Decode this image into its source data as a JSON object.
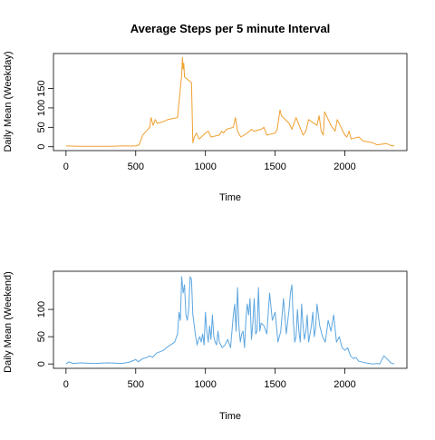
{
  "chart_data": [
    {
      "type": "line",
      "title": "Average Steps per 5 minute Interval",
      "xlabel": "Time",
      "ylabel": "Daily Mean (Weekday)",
      "xlim": [
        -90,
        2445
      ],
      "ylim": [
        -10,
        240
      ],
      "x_ticks": [
        0,
        500,
        1000,
        1500,
        2000
      ],
      "y_ticks": [
        0,
        50,
        100,
        150
      ],
      "color": "#f0a030",
      "series": [
        {
          "x": [
            0,
            100,
            200,
            300,
            400,
            500,
            525,
            550,
            600,
            610,
            625,
            640,
            655,
            700,
            730,
            800,
            815,
            830,
            835,
            840,
            845,
            850,
            900,
            910,
            920,
            935,
            955,
            1000,
            1020,
            1040,
            1100,
            1115,
            1130,
            1150,
            1200,
            1215,
            1230,
            1245,
            1255,
            1300,
            1315,
            1330,
            1345,
            1400,
            1420,
            1440,
            1500,
            1515,
            1535,
            1545,
            1600,
            1620,
            1630,
            1650,
            1700,
            1720,
            1740,
            1800,
            1815,
            1830,
            1845,
            1850,
            1855,
            1900,
            1930,
            1945,
            2000,
            2015,
            2030,
            2045,
            2100,
            2130,
            2200,
            2230,
            2300,
            2330,
            2355
          ],
          "y": [
            2,
            1,
            1,
            1,
            2,
            2,
            5,
            30,
            50,
            75,
            55,
            70,
            60,
            65,
            70,
            75,
            130,
            185,
            230,
            200,
            215,
            180,
            165,
            10,
            25,
            35,
            20,
            35,
            40,
            25,
            30,
            40,
            35,
            45,
            50,
            75,
            40,
            30,
            25,
            35,
            40,
            45,
            40,
            45,
            50,
            30,
            35,
            45,
            95,
            80,
            60,
            45,
            55,
            75,
            30,
            40,
            70,
            55,
            80,
            40,
            30,
            60,
            90,
            55,
            40,
            70,
            30,
            25,
            40,
            20,
            25,
            15,
            10,
            5,
            8,
            3,
            2
          ]
        }
      ]
    },
    {
      "type": "line",
      "title": "",
      "xlabel": "Time",
      "ylabel": "Daily Mean (Weekend)",
      "xlim": [
        -90,
        2445
      ],
      "ylim": [
        -8,
        170
      ],
      "x_ticks": [
        0,
        500,
        1000,
        1500,
        2000
      ],
      "y_ticks": [
        0,
        50,
        100
      ],
      "color": "#5ca6e0",
      "series": [
        {
          "x": [
            0,
            20,
            50,
            100,
            200,
            300,
            400,
            450,
            500,
            520,
            550,
            580,
            600,
            620,
            650,
            700,
            720,
            750,
            780,
            800,
            810,
            820,
            830,
            840,
            850,
            860,
            870,
            880,
            890,
            900,
            910,
            920,
            930,
            940,
            950,
            960,
            970,
            980,
            990,
            1000,
            1010,
            1020,
            1030,
            1040,
            1050,
            1060,
            1070,
            1080,
            1090,
            1100,
            1120,
            1140,
            1160,
            1180,
            1200,
            1210,
            1220,
            1230,
            1240,
            1250,
            1260,
            1270,
            1280,
            1290,
            1300,
            1310,
            1320,
            1330,
            1340,
            1350,
            1360,
            1370,
            1380,
            1390,
            1400,
            1420,
            1440,
            1460,
            1480,
            1500,
            1520,
            1540,
            1560,
            1580,
            1600,
            1610,
            1620,
            1630,
            1640,
            1650,
            1660,
            1670,
            1680,
            1690,
            1700,
            1710,
            1720,
            1730,
            1740,
            1750,
            1760,
            1770,
            1780,
            1790,
            1800,
            1820,
            1840,
            1860,
            1880,
            1900,
            1920,
            1940,
            1960,
            1980,
            2000,
            2020,
            2040,
            2060,
            2080,
            2100,
            2150,
            2200,
            2230,
            2250,
            2280,
            2300,
            2330,
            2355
          ],
          "y": [
            0,
            4,
            1,
            2,
            1,
            2,
            1,
            3,
            8,
            4,
            10,
            12,
            15,
            12,
            20,
            25,
            30,
            35,
            40,
            55,
            95,
            80,
            160,
            130,
            145,
            90,
            80,
            100,
            160,
            155,
            90,
            70,
            50,
            35,
            45,
            50,
            40,
            55,
            35,
            95,
            60,
            40,
            70,
            45,
            90,
            50,
            40,
            35,
            60,
            40,
            30,
            35,
            45,
            30,
            90,
            110,
            60,
            140,
            70,
            40,
            55,
            60,
            30,
            80,
            110,
            90,
            120,
            45,
            75,
            120,
            55,
            60,
            140,
            60,
            75,
            70,
            55,
            130,
            80,
            95,
            40,
            60,
            120,
            55,
            100,
            130,
            145,
            80,
            40,
            50,
            100,
            60,
            40,
            110,
            70,
            45,
            60,
            90,
            40,
            55,
            70,
            95,
            50,
            65,
            110,
            70,
            50,
            40,
            80,
            60,
            90,
            40,
            50,
            30,
            25,
            30,
            15,
            10,
            12,
            5,
            2,
            0,
            1,
            0,
            15,
            10,
            2,
            0
          ]
        }
      ]
    }
  ]
}
